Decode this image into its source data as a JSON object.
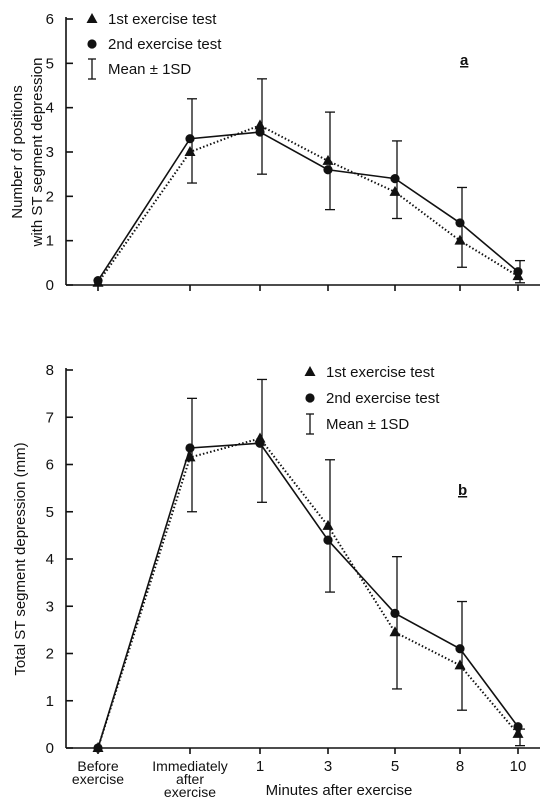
{
  "chart_data": [
    {
      "type": "line",
      "panel_label": "a",
      "ylabel_lines": [
        "Number of positions",
        "with ST segment depression"
      ],
      "ylim": [
        0,
        6
      ],
      "yticks": [
        "0",
        "1",
        "2",
        "3",
        "4",
        "5",
        "6"
      ],
      "categories": [
        "Before exercise",
        "Immediately after exercise",
        "1",
        "3",
        "5",
        "8",
        "10"
      ],
      "legend": {
        "items": [
          "1st exercise test",
          "2nd exercise test",
          "Mean ± 1SD"
        ],
        "placement": "top-left"
      },
      "series": [
        {
          "name": "1st exercise test",
          "marker": "triangle",
          "style": "dotted",
          "values": [
            0.05,
            3.0,
            3.6,
            2.8,
            2.1,
            1.0,
            0.2
          ]
        },
        {
          "name": "2nd exercise test",
          "marker": "circle",
          "style": "solid",
          "values": [
            0.1,
            3.3,
            3.45,
            2.6,
            2.4,
            1.4,
            0.3
          ]
        }
      ],
      "error_bars": [
        {
          "category": "Immediately after exercise",
          "low": 2.3,
          "high": 4.2
        },
        {
          "category": "1",
          "low": 2.5,
          "high": 4.65
        },
        {
          "category": "3",
          "low": 1.7,
          "high": 3.9
        },
        {
          "category": "5",
          "low": 1.5,
          "high": 3.25
        },
        {
          "category": "8",
          "low": 0.4,
          "high": 2.2
        },
        {
          "category": "10",
          "low": 0.05,
          "high": 0.55
        }
      ]
    },
    {
      "type": "line",
      "panel_label": "b",
      "ylabel": "Total ST segment depression (mm)",
      "xlabel": "Minutes after exercise",
      "ylim": [
        0,
        8
      ],
      "yticks": [
        "0",
        "1",
        "2",
        "3",
        "4",
        "5",
        "6",
        "7",
        "8"
      ],
      "categories": [
        "Before exercise",
        "Immediately after exercise",
        "1",
        "3",
        "5",
        "8",
        "10"
      ],
      "x_tick_labels": [
        [
          "Before",
          "exercise"
        ],
        [
          "Immediately",
          "after",
          "exercise"
        ],
        [
          "1"
        ],
        [
          "3"
        ],
        [
          "5"
        ],
        [
          "8"
        ],
        [
          "10"
        ]
      ],
      "legend": {
        "items": [
          "1st exercise test",
          "2nd exercise test",
          "Mean ± 1SD"
        ],
        "placement": "top-right"
      },
      "series": [
        {
          "name": "1st exercise test",
          "marker": "triangle",
          "style": "dotted",
          "values": [
            0.0,
            6.15,
            6.55,
            4.7,
            2.45,
            1.75,
            0.3
          ]
        },
        {
          "name": "2nd exercise test",
          "marker": "circle",
          "style": "solid",
          "values": [
            0.0,
            6.35,
            6.45,
            4.4,
            2.85,
            2.1,
            0.45
          ]
        }
      ],
      "error_bars": [
        {
          "category": "Immediately after exercise",
          "low": 5.0,
          "high": 7.4
        },
        {
          "category": "1",
          "low": 5.2,
          "high": 7.8
        },
        {
          "category": "3",
          "low": 3.3,
          "high": 6.1
        },
        {
          "category": "5",
          "low": 1.25,
          "high": 4.05
        },
        {
          "category": "8",
          "low": 0.8,
          "high": 3.1
        },
        {
          "category": "10",
          "low": 0.05,
          "high": 0.4
        }
      ]
    }
  ]
}
